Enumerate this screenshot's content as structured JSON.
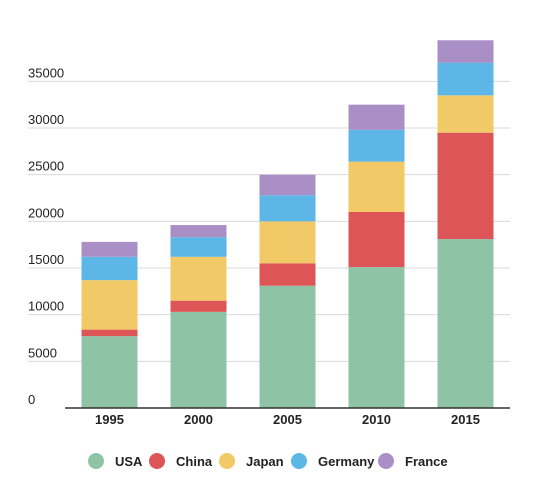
{
  "chart_data": {
    "type": "bar",
    "stacked": true,
    "categories": [
      "1995",
      "2000",
      "2005",
      "2010",
      "2015"
    ],
    "series": [
      {
        "name": "USA",
        "color": "#8fc3a5",
        "values": [
          7700,
          10300,
          13100,
          15100,
          18100
        ]
      },
      {
        "name": "China",
        "color": "#de5557",
        "values": [
          700,
          1200,
          2400,
          5900,
          11400
        ]
      },
      {
        "name": "Japan",
        "color": "#f1ca67",
        "values": [
          5300,
          4700,
          4500,
          5400,
          4000
        ]
      },
      {
        "name": "Germany",
        "color": "#5db7e6",
        "values": [
          2500,
          2100,
          2800,
          3400,
          3500
        ]
      },
      {
        "name": "France",
        "color": "#a98fc6",
        "values": [
          1600,
          1300,
          2200,
          2700,
          2400
        ]
      }
    ],
    "yticks": [
      0,
      5000,
      10000,
      15000,
      20000,
      25000,
      30000,
      35000
    ],
    "ylim": [
      0,
      39000
    ],
    "grid": true,
    "legend": "bottom",
    "title": "",
    "xlabel": "",
    "ylabel": ""
  }
}
